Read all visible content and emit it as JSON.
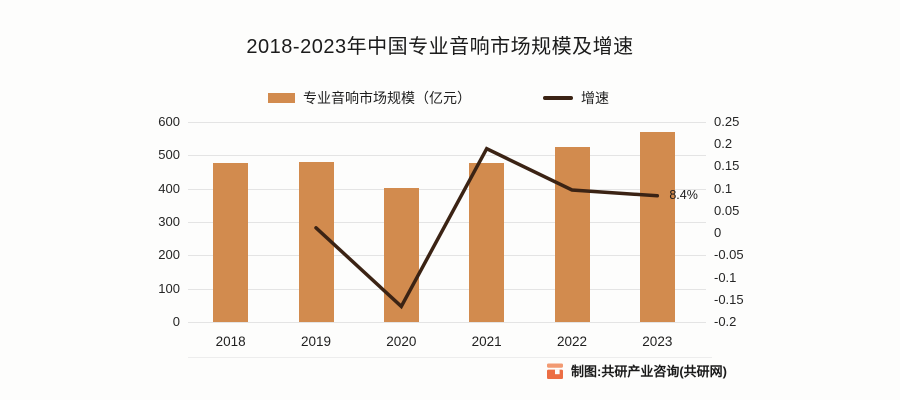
{
  "title": "2018-2023年中国专业音响市场规模及增速",
  "legend": {
    "bar_label": "专业音响市场规模（亿元）",
    "line_label": "增速"
  },
  "chart_data": {
    "type": "bar+line",
    "categories": [
      "2018",
      "2019",
      "2020",
      "2021",
      "2022",
      "2023"
    ],
    "series": [
      {
        "name": "专业音响市场规模（亿元）",
        "type": "bar",
        "axis": "left",
        "color": "#d28b4e",
        "values": [
          476,
          481,
          402,
          478,
          525,
          569
        ]
      },
      {
        "name": "增速",
        "type": "line",
        "axis": "right",
        "color": "#3b2314",
        "values": [
          null,
          0.012,
          -0.165,
          0.19,
          0.097,
          0.084
        ]
      }
    ],
    "left_axis": {
      "min": 0,
      "max": 600,
      "step": 100,
      "ticks": [
        600,
        500,
        400,
        300,
        200,
        100,
        0
      ]
    },
    "right_axis": {
      "min": -0.2,
      "max": 0.25,
      "step": 0.05,
      "ticks": [
        "0.25",
        "0.2",
        "0.15",
        "0.1",
        "0.05",
        "0",
        "-0.05",
        "-0.1",
        "-0.15",
        "-0.2"
      ]
    },
    "annotations": [
      {
        "text": "8.4%",
        "category": "2023",
        "series": "增速",
        "value": 0.084
      }
    ],
    "grid": true,
    "legend_position": "top-center"
  },
  "footer": {
    "credit": "制图:共研产业咨询(共研网)"
  },
  "colors": {
    "bar": "#d28b4e",
    "line": "#3b2314",
    "grid": "#e4e4e4",
    "text": "#1f1f1f",
    "background": "#fdfdfc",
    "logo_orange": "#ec6e44",
    "logo_light": "#f29a72"
  }
}
